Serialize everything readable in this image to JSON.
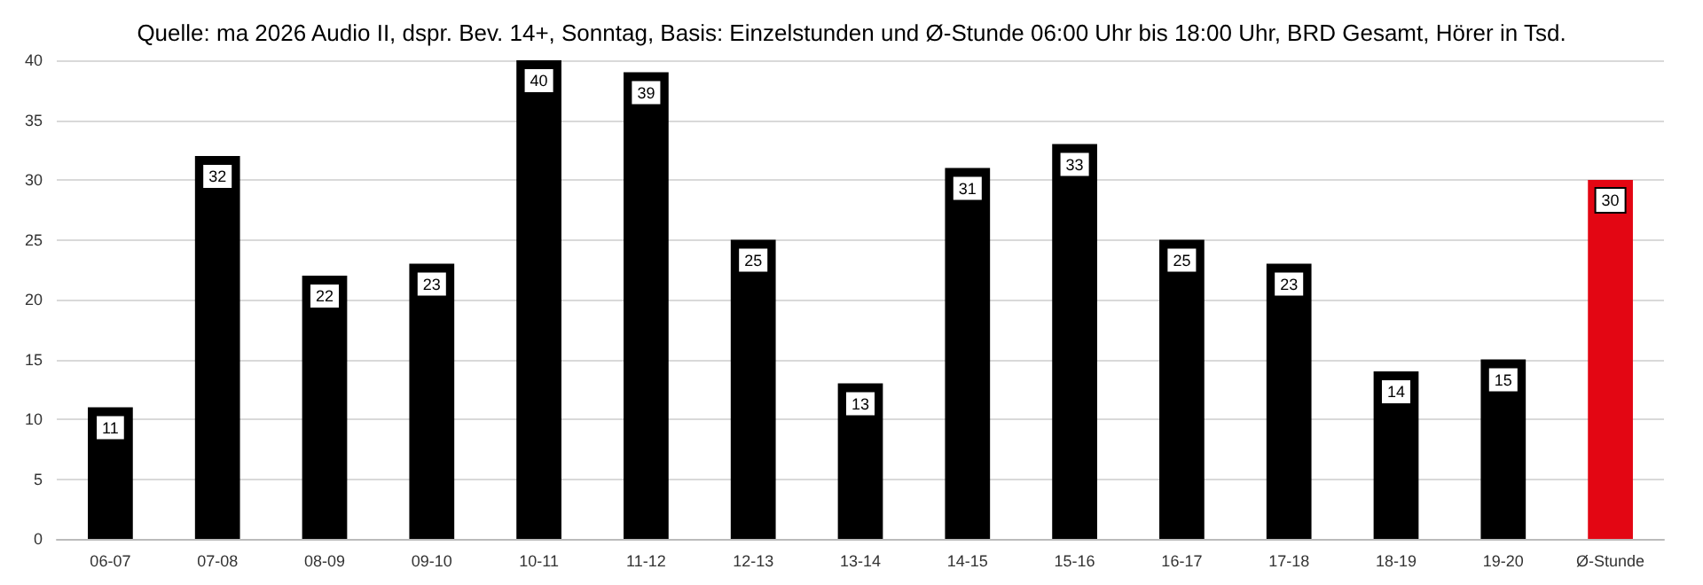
{
  "chart_data": {
    "type": "bar",
    "title": "Quelle: ma 2026 Audio II, dspr. Bev. 14+, Sonntag, Basis: Einzelstunden und Ø-Stunde 06:00 Uhr bis 18:00 Uhr, BRD Gesamt, Hörer in Tsd.",
    "categories": [
      "06-07",
      "07-08",
      "08-09",
      "09-10",
      "10-11",
      "11-12",
      "12-13",
      "13-14",
      "14-15",
      "15-16",
      "16-17",
      "17-18",
      "18-19",
      "19-20",
      "Ø-Stunde"
    ],
    "values": [
      11,
      32,
      22,
      23,
      40,
      39,
      25,
      13,
      31,
      33,
      25,
      23,
      14,
      15,
      30
    ],
    "colors": [
      "#000000",
      "#000000",
      "#000000",
      "#000000",
      "#000000",
      "#000000",
      "#000000",
      "#000000",
      "#000000",
      "#000000",
      "#000000",
      "#000000",
      "#000000",
      "#000000",
      "#e30613"
    ],
    "ylim": [
      0,
      40
    ],
    "yticks": [
      0,
      5,
      10,
      15,
      20,
      25,
      30,
      35,
      40
    ],
    "grid": "y",
    "data_labels": true
  }
}
